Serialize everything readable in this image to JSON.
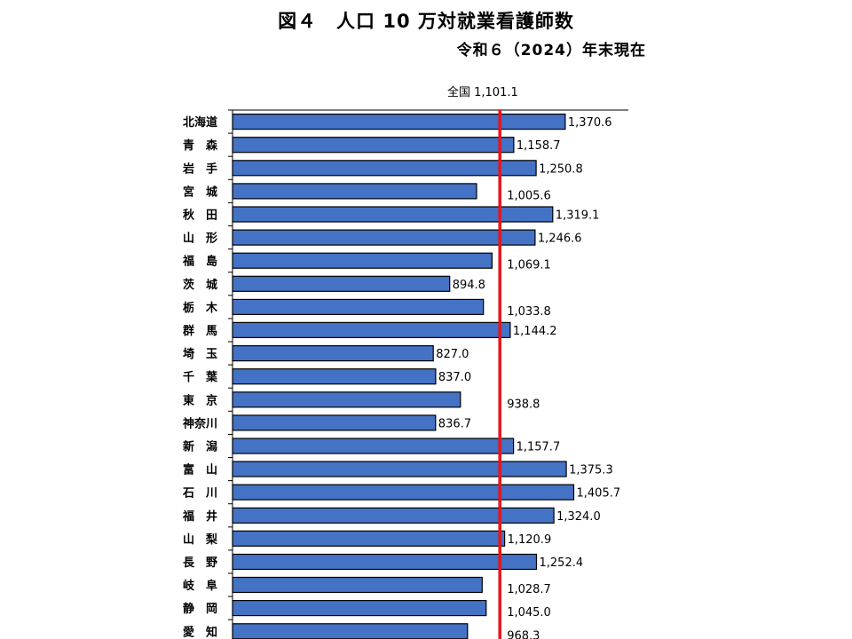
{
  "title": "図４　人口 10 万対就業看護師数",
  "subtitle": "令和６（2024）年末現在",
  "chart_data": {
    "type": "bar",
    "orientation": "horizontal",
    "title": "図４　人口 10 万対就業看護師数",
    "subtitle": "令和６（2024）年末現在",
    "xlim": [
      0,
      1500
    ],
    "grid": false,
    "legend": "none",
    "bar_color": "#4472C4",
    "bar_edge_color": "#000000",
    "reference_line": {
      "label": "全国",
      "value_text": "1,101.1",
      "value": 1101.1,
      "color": "#E8141B"
    },
    "categories": [
      "北海道",
      "青　森",
      "岩　手",
      "宮　城",
      "秋　田",
      "山　形",
      "福　島",
      "茨　城",
      "栃　木",
      "群　馬",
      "埼　玉",
      "千　葉",
      "東　京",
      "神奈川",
      "新　潟",
      "富　山",
      "石　川",
      "福　井",
      "山　梨",
      "長　野",
      "岐　阜",
      "静　岡",
      "愛　知"
    ],
    "values": [
      1370.6,
      1158.7,
      1250.8,
      1005.6,
      1319.1,
      1246.6,
      1069.1,
      894.8,
      1033.8,
      1144.2,
      827.0,
      837.0,
      938.8,
      836.7,
      1157.7,
      1375.3,
      1405.7,
      1324.0,
      1120.9,
      1252.4,
      1028.7,
      1045.0,
      968.3
    ],
    "value_labels": [
      "1,370.6",
      "1,158.7",
      "1,250.8",
      "1,005.6",
      "1,319.1",
      "1,246.6",
      "1,069.1",
      "894.8",
      "1,033.8",
      "1,144.2",
      "827.0",
      "837.0",
      "938.8",
      "836.7",
      "1,157.7",
      "1,375.3",
      "1,405.7",
      "1,324.0",
      "1,120.9",
      "1,252.4",
      "1,028.7",
      "1,045.0",
      "968.3"
    ]
  }
}
